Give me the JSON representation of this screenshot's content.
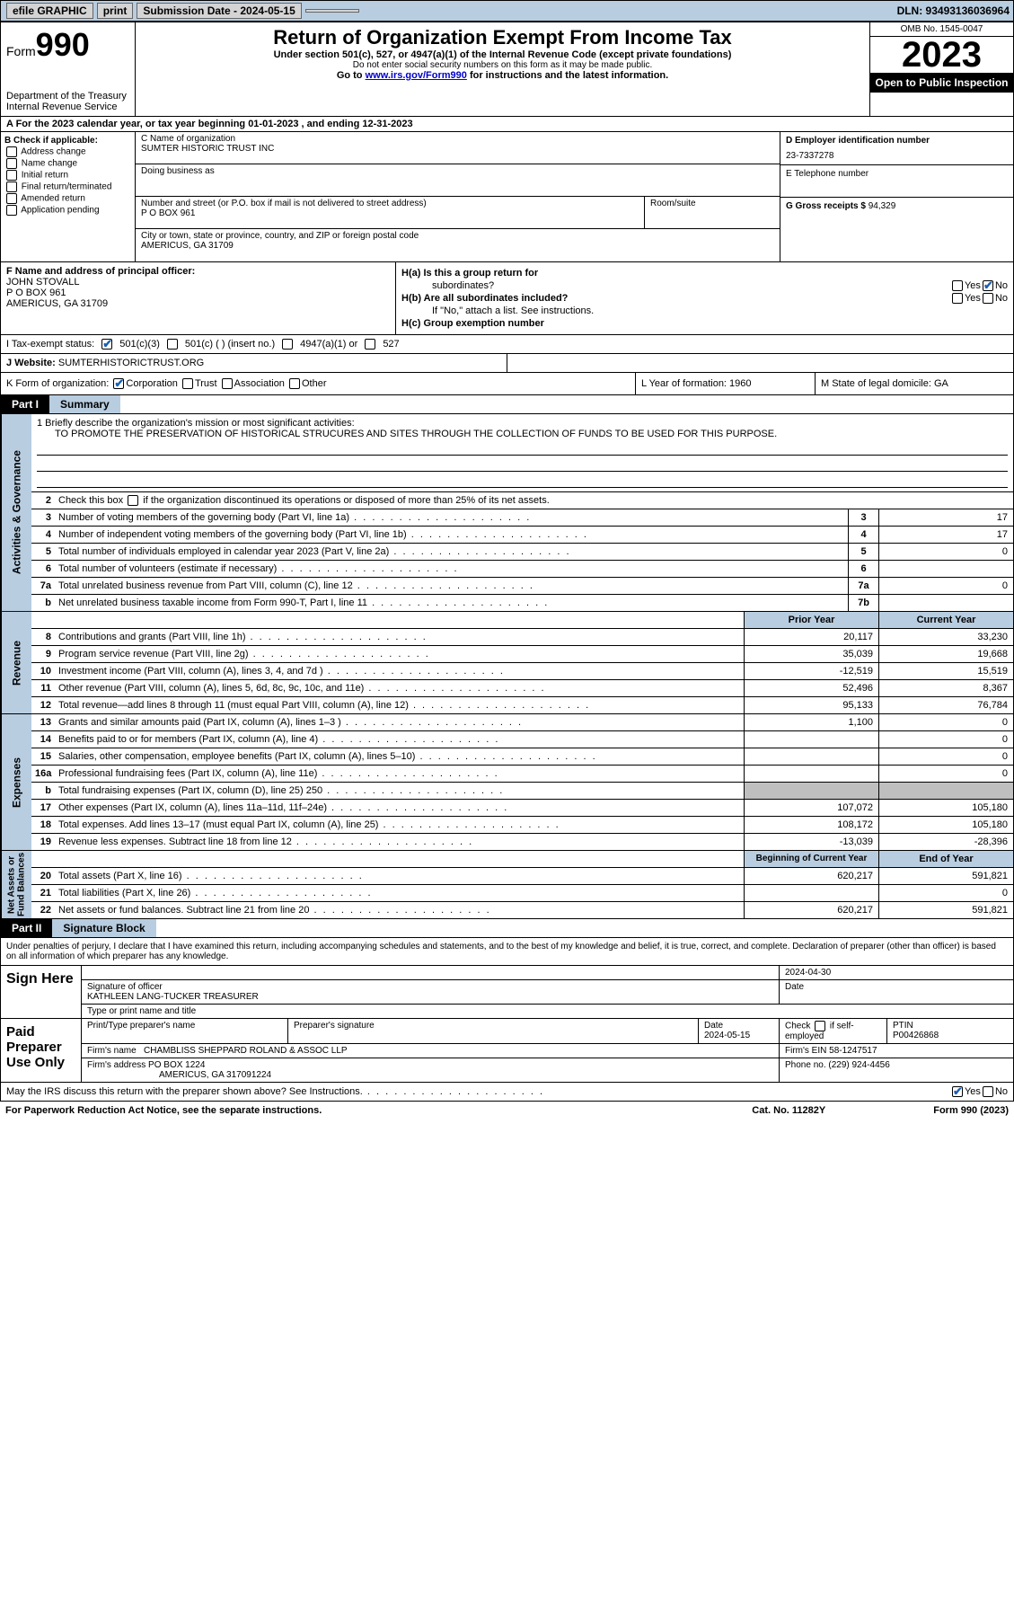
{
  "topbar": {
    "efile": "efile GRAPHIC",
    "print": "print",
    "sub_label": "Submission Date - 2024-05-15",
    "dln": "DLN: 93493136036964"
  },
  "header": {
    "form": "Form",
    "num": "990",
    "dept": "Department of the Treasury\nInternal Revenue Service",
    "title": "Return of Organization Exempt From Income Tax",
    "sub1": "Under section 501(c), 527, or 4947(a)(1) of the Internal Revenue Code (except private foundations)",
    "sub2": "Do not enter social security numbers on this form as it may be made public.",
    "sub3": "Go to ",
    "link": "www.irs.gov/Form990",
    "sub3b": " for instructions and the latest information.",
    "omb": "OMB No. 1545-0047",
    "year": "2023",
    "inspect": "Open to Public Inspection"
  },
  "row_a": "A For the 2023 calendar year, or tax year beginning 01-01-2023    , and ending 12-31-2023",
  "b": {
    "hdr": "B Check if applicable:",
    "opts": [
      "Address change",
      "Name change",
      "Initial return",
      "Final return/terminated",
      "Amended return",
      "Application pending"
    ]
  },
  "c": {
    "name_lbl": "C Name of organization",
    "name": "SUMTER HISTORIC TRUST INC",
    "dba_lbl": "Doing business as",
    "addr_lbl": "Number and street (or P.O. box if mail is not delivered to street address)",
    "room_lbl": "Room/suite",
    "addr": "P O BOX 961",
    "city_lbl": "City or town, state or province, country, and ZIP or foreign postal code",
    "city": "AMERICUS, GA  31709"
  },
  "d": {
    "lbl": "D Employer identification number",
    "val": "23-7337278"
  },
  "e": {
    "lbl": "E Telephone number"
  },
  "g": {
    "lbl": "G Gross receipts $",
    "val": "94,329"
  },
  "f": {
    "lbl": "F  Name and address of principal officer:",
    "name": "JOHN STOVALL",
    "addr": "P O BOX 961",
    "city": "AMERICUS, GA  31709"
  },
  "h": {
    "a": "H(a)  Is this a group return for",
    "a2": "subordinates?",
    "b": "H(b)  Are all subordinates included?",
    "b2": "If \"No,\" attach a list. See instructions.",
    "c": "H(c)  Group exemption number ",
    "yes": "Yes",
    "no": "No"
  },
  "i": {
    "lbl": "I     Tax-exempt status:",
    "o1": "501(c)(3)",
    "o2": "501(c) (  ) (insert no.)",
    "o3": "4947(a)(1) or",
    "o4": "527"
  },
  "j": {
    "lbl": "J    Website: ",
    "val": "SUMTERHISTORICTRUST.ORG"
  },
  "k": {
    "lbl": "K Form of organization:",
    "o1": "Corporation",
    "o2": "Trust",
    "o3": "Association",
    "o4": "Other",
    "l": "L Year of formation: 1960",
    "m": "M State of legal domicile: GA"
  },
  "part1": {
    "tab": "Part I",
    "title": "Summary"
  },
  "mission": {
    "lbl": "1   Briefly describe the organization's mission or most significant activities:",
    "txt": "TO PROMOTE THE PRESERVATION OF HISTORICAL STRUCURES AND SITES THROUGH THE COLLECTION OF FUNDS TO BE USED FOR THIS PURPOSE."
  },
  "s2": "Check this box        if the organization discontinued its operations or disposed of more than 25% of its net assets.",
  "lines_gov": [
    {
      "n": "3",
      "t": "Number of voting members of the governing body (Part VI, line 1a)",
      "b": "3",
      "v": "17"
    },
    {
      "n": "4",
      "t": "Number of independent voting members of the governing body (Part VI, line 1b)",
      "b": "4",
      "v": "17"
    },
    {
      "n": "5",
      "t": "Total number of individuals employed in calendar year 2023 (Part V, line 2a)",
      "b": "5",
      "v": "0"
    },
    {
      "n": "6",
      "t": "Total number of volunteers (estimate if necessary)",
      "b": "6",
      "v": ""
    },
    {
      "n": "7a",
      "t": "Total unrelated business revenue from Part VIII, column (C), line 12",
      "b": "7a",
      "v": "0"
    },
    {
      "n": "b",
      "t": "Net unrelated business taxable income from Form 990-T, Part I, line 11",
      "b": "7b",
      "v": ""
    }
  ],
  "col_hdr": {
    "py": "Prior Year",
    "cy": "Current Year"
  },
  "lines_rev": [
    {
      "n": "8",
      "t": "Contributions and grants (Part VIII, line 1h)",
      "py": "20,117",
      "cy": "33,230"
    },
    {
      "n": "9",
      "t": "Program service revenue (Part VIII, line 2g)",
      "py": "35,039",
      "cy": "19,668"
    },
    {
      "n": "10",
      "t": "Investment income (Part VIII, column (A), lines 3, 4, and 7d )",
      "py": "-12,519",
      "cy": "15,519"
    },
    {
      "n": "11",
      "t": "Other revenue (Part VIII, column (A), lines 5, 6d, 8c, 9c, 10c, and 11e)",
      "py": "52,496",
      "cy": "8,367"
    },
    {
      "n": "12",
      "t": "Total revenue—add lines 8 through 11 (must equal Part VIII, column (A), line 12)",
      "py": "95,133",
      "cy": "76,784"
    }
  ],
  "lines_exp": [
    {
      "n": "13",
      "t": "Grants and similar amounts paid (Part IX, column (A), lines 1–3 )",
      "py": "1,100",
      "cy": "0"
    },
    {
      "n": "14",
      "t": "Benefits paid to or for members (Part IX, column (A), line 4)",
      "py": "",
      "cy": "0"
    },
    {
      "n": "15",
      "t": "Salaries, other compensation, employee benefits (Part IX, column (A), lines 5–10)",
      "py": "",
      "cy": "0"
    },
    {
      "n": "16a",
      "t": "Professional fundraising fees (Part IX, column (A), line 11e)",
      "py": "",
      "cy": "0"
    },
    {
      "n": "b",
      "t": "Total fundraising expenses (Part IX, column (D), line 25) 250",
      "py": "shade",
      "cy": "shade"
    },
    {
      "n": "17",
      "t": "Other expenses (Part IX, column (A), lines 11a–11d, 11f–24e)",
      "py": "107,072",
      "cy": "105,180"
    },
    {
      "n": "18",
      "t": "Total expenses. Add lines 13–17 (must equal Part IX, column (A), line 25)",
      "py": "108,172",
      "cy": "105,180"
    },
    {
      "n": "19",
      "t": "Revenue less expenses. Subtract line 18 from line 12",
      "py": "-13,039",
      "cy": "-28,396"
    }
  ],
  "col_hdr2": {
    "py": "Beginning of Current Year",
    "cy": "End of Year"
  },
  "lines_net": [
    {
      "n": "20",
      "t": "Total assets (Part X, line 16)",
      "py": "620,217",
      "cy": "591,821"
    },
    {
      "n": "21",
      "t": "Total liabilities (Part X, line 26)",
      "py": "",
      "cy": "0"
    },
    {
      "n": "22",
      "t": "Net assets or fund balances. Subtract line 21 from line 20",
      "py": "620,217",
      "cy": "591,821"
    }
  ],
  "vtabs": {
    "gov": "Activities & Governance",
    "rev": "Revenue",
    "exp": "Expenses",
    "net": "Net Assets or\nFund Balances"
  },
  "part2": {
    "tab": "Part II",
    "title": "Signature Block"
  },
  "sig_intro": "Under penalties of perjury, I declare that I have examined this return, including accompanying schedules and statements, and to the best of my knowledge and belief, it is true, correct, and complete. Declaration of preparer (other than officer) is based on all information of which preparer has any knowledge.",
  "sign": {
    "left": "Sign Here",
    "date": "2024-04-30",
    "sig_lbl": "Signature of officer",
    "name": "KATHLEEN LANG-TUCKER  TREASURER",
    "type_lbl": "Type or print name and title",
    "date_lbl": "Date"
  },
  "paid": {
    "left": "Paid Preparer Use Only",
    "c1": "Print/Type preparer's name",
    "c2": "Preparer's signature",
    "c3": "Date",
    "date": "2024-05-15",
    "c4": "Check        if self-employed",
    "c5": "PTIN",
    "ptin": "P00426868",
    "firm_lbl": "Firm's name ",
    "firm": "CHAMBLISS SHEPPARD ROLAND & ASSOC LLP",
    "ein_lbl": "Firm's EIN ",
    "ein": "58-1247517",
    "addr_lbl": "Firm's address ",
    "addr": "PO BOX 1224",
    "addr2": "AMERICUS, GA  317091224",
    "phone_lbl": "Phone no. ",
    "phone": "(229) 924-4456"
  },
  "footer": {
    "q": "May the IRS discuss this return with the preparer shown above? See Instructions.",
    "yes": "Yes",
    "no": "No"
  },
  "footer2": {
    "l": "For Paperwork Reduction Act Notice, see the separate instructions.",
    "m": "Cat. No. 11282Y",
    "r": "Form 990 (2023)"
  }
}
